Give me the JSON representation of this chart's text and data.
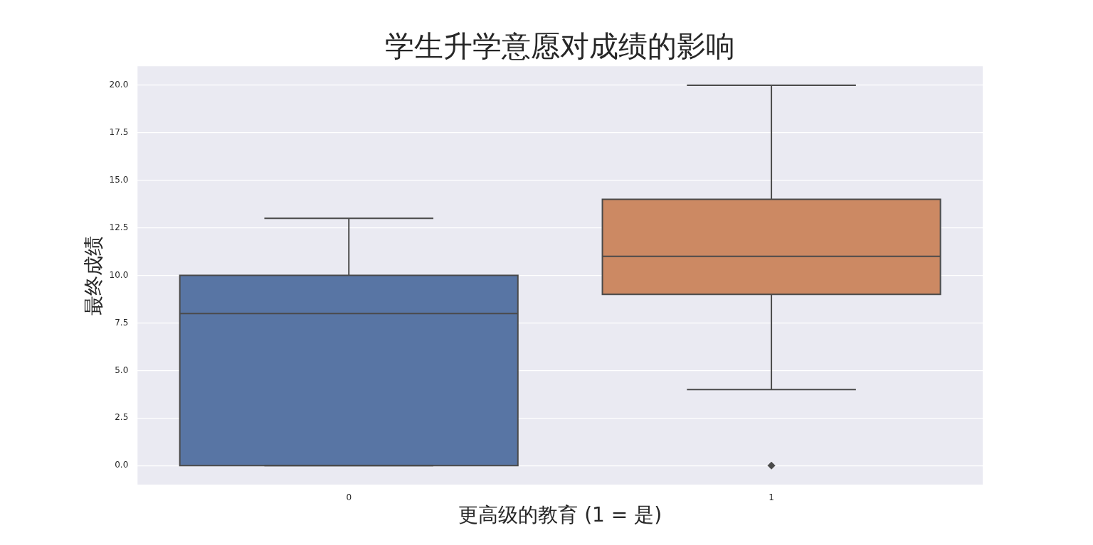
{
  "chart_data": {
    "type": "box",
    "title": "学生升学意愿对成绩的影响",
    "xlabel": "更高级的教育 (1 = 是)",
    "ylabel": "最终成绩",
    "categories": [
      "0",
      "1"
    ],
    "boxes": [
      {
        "low": 0,
        "q1": 0,
        "median": 8,
        "q3": 10,
        "high": 13
      },
      {
        "low": 4,
        "q1": 9,
        "median": 11,
        "q3": 14,
        "high": 20,
        "outliers": [
          0
        ]
      }
    ],
    "colors": [
      "#5875a4",
      "#cc8963"
    ],
    "ylim": [
      -1,
      21
    ],
    "yticks": [
      {
        "value": 0,
        "label": "0.0"
      },
      {
        "value": 2.5,
        "label": "2.5"
      },
      {
        "value": 5,
        "label": "5.0"
      },
      {
        "value": 7.5,
        "label": "7.5"
      },
      {
        "value": 10,
        "label": "10.0"
      },
      {
        "value": 12.5,
        "label": "12.5"
      },
      {
        "value": 15,
        "label": "15.0"
      },
      {
        "value": 17.5,
        "label": "17.5"
      },
      {
        "value": 20,
        "label": "20.0"
      }
    ],
    "grid": "y",
    "marker": "diamond"
  }
}
